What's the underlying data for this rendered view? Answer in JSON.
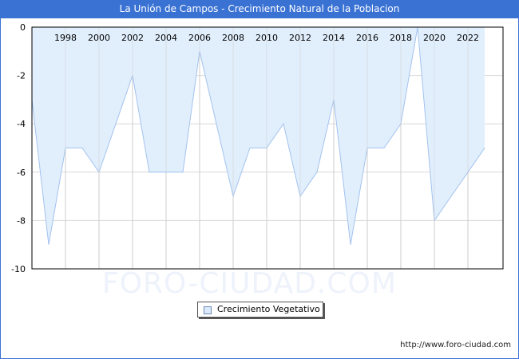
{
  "header": {
    "title": "La Unión de Campos - Crecimiento Natural de la Poblacion"
  },
  "watermark": "FORO-CIUDAD.COM",
  "footer": {
    "url": "http://www.foro-ciudad.com"
  },
  "legend": {
    "label": "Crecimiento Vegetativo"
  },
  "colors": {
    "title_bg": "#3a72d4",
    "area_fill": "#e1effd",
    "line": "#a3c2ee",
    "grid": "#d8d8d8"
  },
  "chart_data": {
    "type": "area",
    "title": "La Unión de Campos - Crecimiento Natural de la Poblacion",
    "xlabel": "",
    "ylabel": "",
    "x": [
      1996,
      1997,
      1998,
      1999,
      2000,
      2001,
      2002,
      2003,
      2004,
      2005,
      2006,
      2007,
      2008,
      2009,
      2010,
      2011,
      2012,
      2013,
      2014,
      2015,
      2016,
      2017,
      2018,
      2019,
      2020,
      2021,
      2022,
      2023
    ],
    "series": [
      {
        "name": "Crecimiento Vegetativo",
        "values": [
          -3,
          -9,
          -5,
          -5,
          -6,
          -4,
          -2,
          -6,
          -6,
          -6,
          -1,
          -4,
          -7,
          -5,
          -5,
          -4,
          -7,
          -6,
          -3,
          -9,
          -5,
          -5,
          -4,
          0,
          -8,
          -7,
          -6,
          -5
        ]
      }
    ],
    "x_ticks": [
      "1998",
      "2000",
      "2002",
      "2004",
      "2006",
      "2008",
      "2010",
      "2012",
      "2014",
      "2016",
      "2018",
      "2020",
      "2022"
    ],
    "y_ticks": [
      "0",
      "-2",
      "-4",
      "-6",
      "-8",
      "-10"
    ],
    "ylim": [
      -10,
      0
    ],
    "grid": true,
    "legend_position": "bottom"
  }
}
